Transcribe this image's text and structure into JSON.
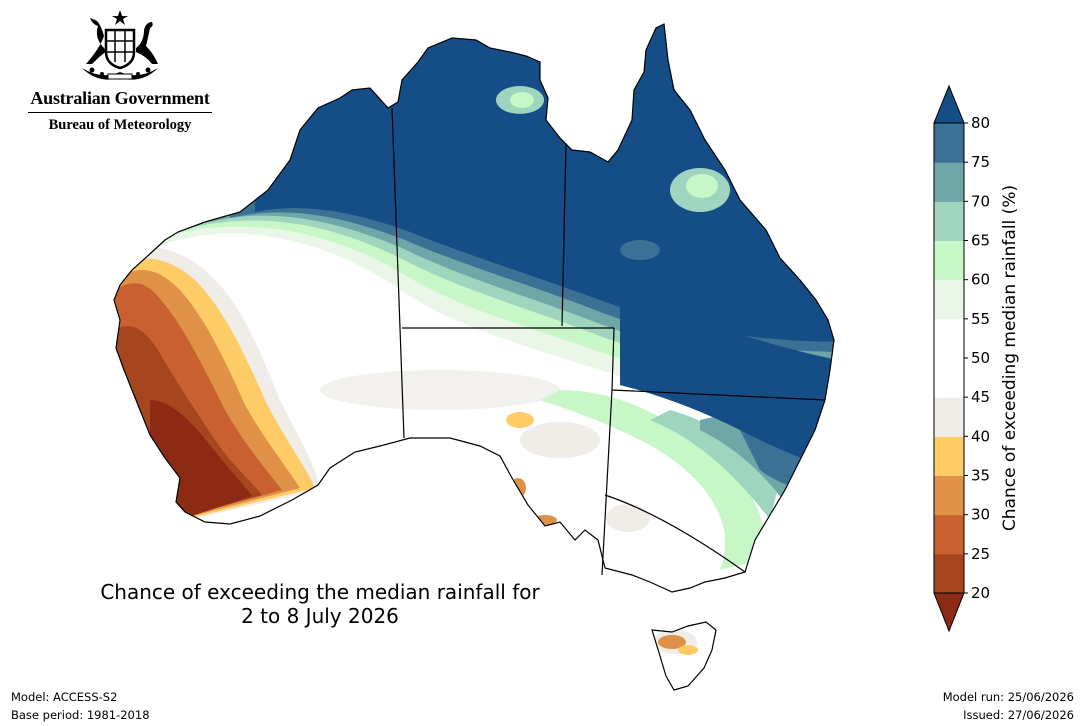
{
  "header": {
    "government": "Australian Government",
    "agency": "Bureau of Meteorology"
  },
  "map": {
    "title_line1": "Chance of exceeding the median rainfall for",
    "title_line2": "2 to 8 July 2026"
  },
  "legend": {
    "title": "Chance of exceeding median rainfall (%)",
    "ticks": [
      "20",
      "25",
      "30",
      "35",
      "40",
      "45",
      "50",
      "55",
      "60",
      "65",
      "70",
      "75",
      "80"
    ],
    "colors": [
      "#a5461f",
      "#c8602f",
      "#df9147",
      "#fdcc67",
      "#f0ede9",
      "#ffffff",
      "#ffffff",
      "#eaf6e7",
      "#c7f7c7",
      "#9fd4bf",
      "#6fa6a7",
      "#3c7196"
    ],
    "below_color": "#8c2a13",
    "above_color": "#154e87"
  },
  "footer": {
    "model": "Model: ACCESS-S2",
    "base_period": "Base period: 1981-2018",
    "model_run": "Model run: 25/06/2026",
    "issued": "Issued: 27/06/2026"
  }
}
